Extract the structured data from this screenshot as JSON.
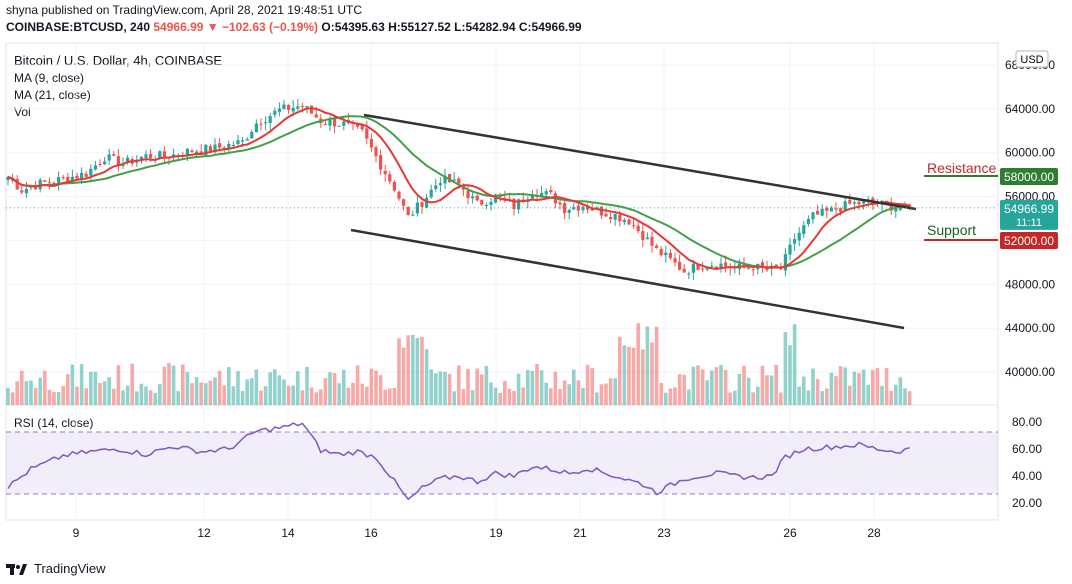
{
  "header": {
    "published": "shyna published on TradingView.com, April 28, 2021 19:48:51 UTC",
    "symbol": "COINBASE:BTCUSD, 240",
    "change": "54966.99 ▼ −102.63 (−0.19%)",
    "ohlc": "O:54395.63 H:55127.52 L:54282.94 C:54966.99"
  },
  "legend": {
    "title": "Bitcoin / U.S. Dollar, 4h, COINBASE",
    "ma9": "MA (9, close)",
    "ma21": "MA (21, close)",
    "vol": "Vol",
    "rsi": "RSI (14, close)"
  },
  "annotations": {
    "resistance": "Resistance",
    "support": "Support",
    "currency": "USD",
    "price_tag": "54966.99",
    "countdown": "11:11",
    "resistance_tag": "58000.00",
    "support_tag": "52000.00"
  },
  "footer": {
    "brand": "TradingView"
  },
  "colors": {
    "up": "#26a69a",
    "down": "#ef5350",
    "ma9": "#e53935",
    "ma21": "#43a047",
    "rsi": "#7e57c2"
  },
  "chart_data": {
    "type": "candlestick",
    "y_ticks": [
      "68000.00",
      "64000.00",
      "60000.00",
      "56000.00",
      "52000.00",
      "48000.00",
      "44000.00",
      "40000.00"
    ],
    "rsi_ticks": [
      "80.00",
      "60.00",
      "40.00",
      "20.00"
    ],
    "x_ticks": [
      "9",
      "12",
      "14",
      "16",
      "19",
      "21",
      "23",
      "26",
      "28"
    ],
    "ylim": [
      37000,
      70000
    ],
    "rsi_range": [
      30,
      70
    ],
    "price_path": [
      [
        0,
        57800
      ],
      [
        3,
        56600
      ],
      [
        7,
        57200
      ],
      [
        12,
        57600
      ],
      [
        17,
        58100
      ],
      [
        21,
        59600
      ],
      [
        25,
        59000
      ],
      [
        30,
        59700
      ],
      [
        35,
        59700
      ],
      [
        40,
        60200
      ],
      [
        45,
        60400
      ],
      [
        51,
        61000
      ],
      [
        54,
        62700
      ],
      [
        59,
        63900
      ],
      [
        64,
        64300
      ],
      [
        68,
        62900
      ],
      [
        73,
        62600
      ],
      [
        77,
        61800
      ],
      [
        81,
        58900
      ],
      [
        84,
        56800
      ],
      [
        87,
        54100
      ],
      [
        90,
        55500
      ],
      [
        94,
        57600
      ],
      [
        98,
        57100
      ],
      [
        102,
        55300
      ],
      [
        106,
        56000
      ],
      [
        110,
        55100
      ],
      [
        114,
        56500
      ],
      [
        118,
        56100
      ],
      [
        121,
        54900
      ],
      [
        125,
        55200
      ],
      [
        129,
        54600
      ],
      [
        132,
        54300
      ],
      [
        135,
        53800
      ],
      [
        138,
        52500
      ],
      [
        141,
        51100
      ],
      [
        144,
        50200
      ],
      [
        147,
        49200
      ],
      [
        150,
        49700
      ],
      [
        154,
        49900
      ],
      [
        158,
        49500
      ],
      [
        162,
        49600
      ],
      [
        165,
        49300
      ],
      [
        168,
        49400
      ],
      [
        171,
        52200
      ],
      [
        175,
        54200
      ],
      [
        179,
        54700
      ],
      [
        183,
        55300
      ],
      [
        187,
        55500
      ],
      [
        191,
        55200
      ],
      [
        195,
        54900
      ],
      [
        196,
        54966
      ]
    ],
    "rsi_path": [
      [
        0,
        32
      ],
      [
        5,
        45
      ],
      [
        12,
        55
      ],
      [
        18,
        58
      ],
      [
        24,
        60
      ],
      [
        30,
        56
      ],
      [
        36,
        62
      ],
      [
        42,
        58
      ],
      [
        48,
        60
      ],
      [
        54,
        73
      ],
      [
        60,
        76
      ],
      [
        64,
        79
      ],
      [
        68,
        59
      ],
      [
        72,
        56
      ],
      [
        76,
        58
      ],
      [
        80,
        54
      ],
      [
        84,
        36
      ],
      [
        87,
        22
      ],
      [
        90,
        31
      ],
      [
        94,
        38
      ],
      [
        98,
        40
      ],
      [
        102,
        36
      ],
      [
        106,
        42
      ],
      [
        110,
        40
      ],
      [
        114,
        47
      ],
      [
        118,
        45
      ],
      [
        122,
        42
      ],
      [
        126,
        46
      ],
      [
        130,
        42
      ],
      [
        134,
        38
      ],
      [
        138,
        34
      ],
      [
        141,
        28
      ],
      [
        144,
        33
      ],
      [
        147,
        38
      ],
      [
        150,
        40
      ],
      [
        154,
        42
      ],
      [
        158,
        40
      ],
      [
        162,
        39
      ],
      [
        166,
        40
      ],
      [
        169,
        54
      ],
      [
        173,
        60
      ],
      [
        177,
        61
      ],
      [
        181,
        62
      ],
      [
        185,
        63
      ],
      [
        189,
        60
      ],
      [
        193,
        58
      ],
      [
        196,
        60
      ]
    ],
    "resistance_level": 58000,
    "support_level": 52000,
    "last_price": 54966.99
  }
}
